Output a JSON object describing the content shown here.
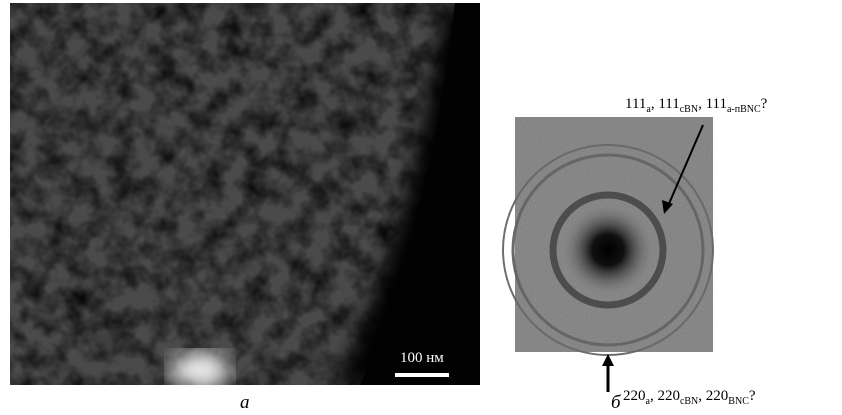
{
  "panels": [
    {
      "scale_bar": "100 нм",
      "caption": "а"
    },
    {
      "caption": "б",
      "labels": [
        {
          "runs": [
            {
              "text": "111"
            },
            {
              "sub": "a"
            },
            {
              "text": ", 111"
            },
            {
              "sub": "cBN"
            },
            {
              "text": ", 111"
            },
            {
              "sub": "a-пBNC"
            },
            {
              "text": "?"
            }
          ]
        },
        {
          "runs": [
            {
              "text": "220"
            },
            {
              "sub": "a"
            },
            {
              "text": ", 220"
            },
            {
              "sub": "cBN"
            },
            {
              "text": ", 220"
            },
            {
              "sub": "BNC"
            },
            {
              "text": "?"
            }
          ]
        }
      ]
    }
  ]
}
